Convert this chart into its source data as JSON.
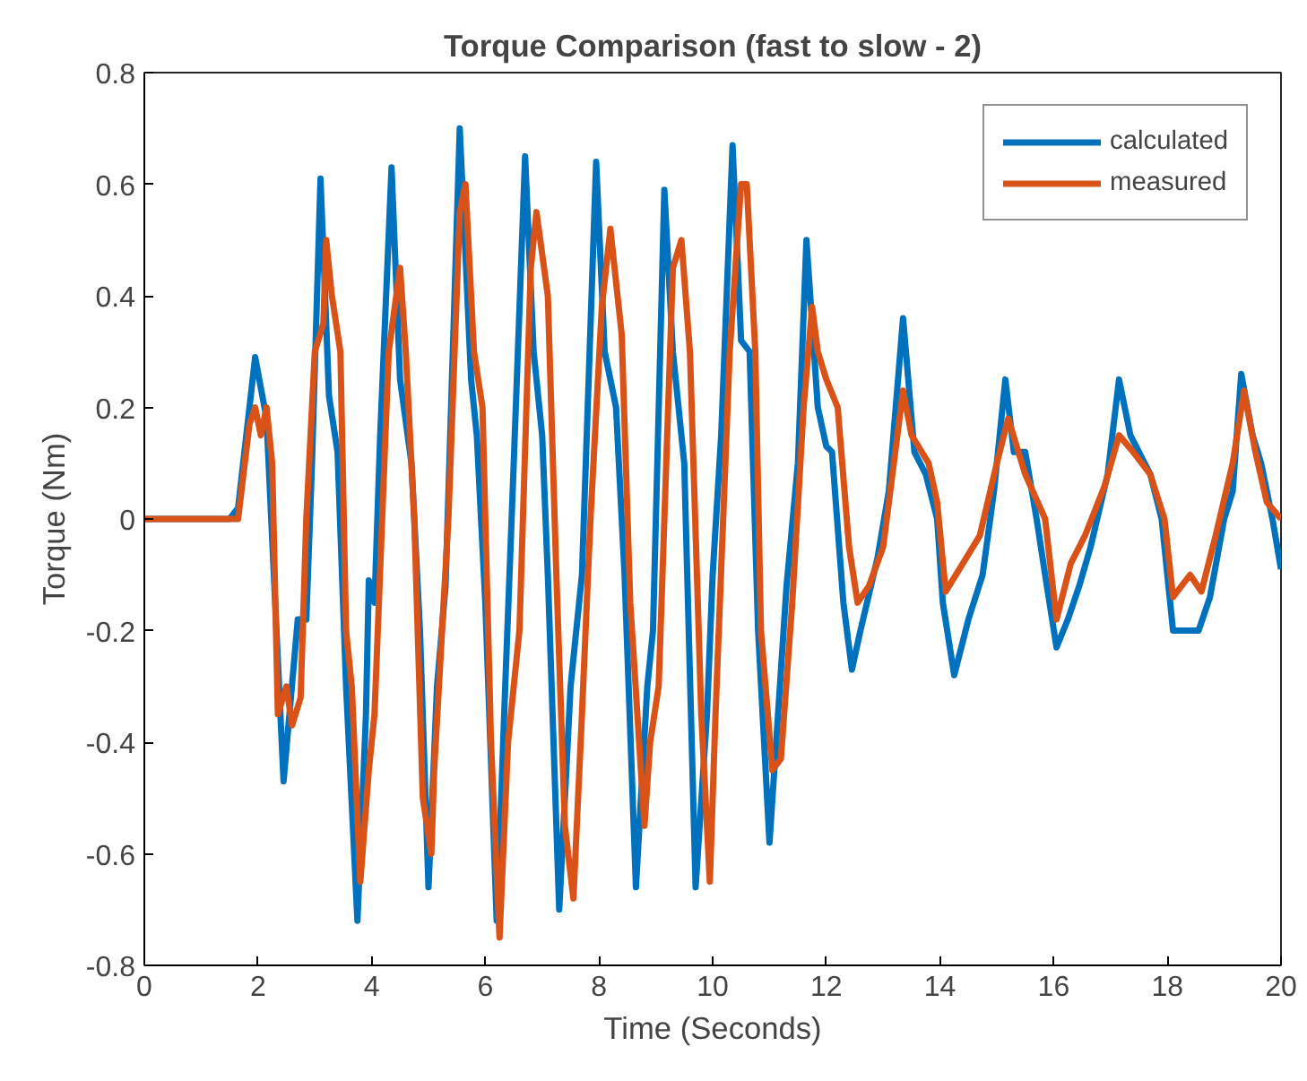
{
  "chart_data": {
    "type": "line",
    "title": "Torque Comparison (fast to slow - 2)",
    "xlabel": "Time (Seconds)",
    "ylabel": "Torque (Nm)",
    "xlim": [
      0,
      20
    ],
    "ylim": [
      -0.8,
      0.8
    ],
    "xticks": [
      0,
      2,
      4,
      6,
      8,
      10,
      12,
      14,
      16,
      18,
      20
    ],
    "yticks": [
      -0.8,
      -0.6,
      -0.4,
      -0.2,
      0,
      0.2,
      0.4,
      0.6,
      0.8
    ],
    "grid": false,
    "legend": "top right",
    "line_style": "solid",
    "marker": "none",
    "series": [
      {
        "name": "calculated",
        "color": "#0072bd",
        "x": [
          0,
          1.5,
          1.65,
          1.95,
          2.15,
          2.45,
          2.7,
          2.85,
          2.95,
          3.1,
          3.25,
          3.4,
          3.55,
          3.75,
          3.9,
          3.95,
          4.05,
          4.15,
          4.35,
          4.5,
          4.7,
          4.85,
          5.0,
          5.15,
          5.3,
          5.55,
          5.75,
          5.85,
          6.0,
          6.2,
          6.35,
          6.5,
          6.7,
          6.85,
          7.0,
          7.1,
          7.3,
          7.5,
          7.7,
          7.95,
          8.1,
          8.3,
          8.45,
          8.65,
          8.85,
          8.95,
          9.15,
          9.3,
          9.5,
          9.7,
          9.9,
          10.0,
          10.15,
          10.35,
          10.5,
          10.65,
          10.8,
          11.0,
          11.15,
          11.3,
          11.5,
          11.65,
          11.85,
          12.0,
          12.1,
          12.3,
          12.45,
          12.6,
          12.9,
          13.1,
          13.35,
          13.55,
          13.75,
          13.95,
          14.05,
          14.25,
          14.5,
          14.75,
          14.95,
          15.15,
          15.3,
          15.5,
          15.7,
          15.85,
          16.05,
          16.25,
          16.45,
          16.65,
          16.95,
          17.15,
          17.35,
          17.7,
          17.9,
          18.1,
          18.35,
          18.55,
          18.75,
          19.0,
          19.15,
          19.3,
          19.5,
          19.65,
          19.85,
          20
        ],
        "values": [
          0,
          0,
          0.02,
          0.29,
          0.18,
          -0.47,
          -0.18,
          -0.18,
          0.1,
          0.61,
          0.22,
          0.12,
          -0.3,
          -0.72,
          -0.35,
          -0.11,
          -0.15,
          0.15,
          0.63,
          0.25,
          0.1,
          -0.2,
          -0.66,
          -0.3,
          -0.12,
          0.7,
          0.25,
          0.15,
          -0.15,
          -0.72,
          -0.3,
          0.1,
          0.65,
          0.3,
          0.15,
          -0.1,
          -0.7,
          -0.3,
          -0.1,
          0.64,
          0.3,
          0.2,
          -0.1,
          -0.66,
          -0.3,
          -0.2,
          0.59,
          0.3,
          0.1,
          -0.66,
          -0.35,
          -0.1,
          0.15,
          0.67,
          0.32,
          0.3,
          -0.2,
          -0.58,
          -0.35,
          -0.12,
          0.1,
          0.5,
          0.2,
          0.13,
          0.12,
          -0.15,
          -0.27,
          -0.2,
          -0.07,
          0.05,
          0.36,
          0.12,
          0.08,
          0.0,
          -0.15,
          -0.28,
          -0.18,
          -0.1,
          0.05,
          0.25,
          0.12,
          0.12,
          0.0,
          -0.1,
          -0.23,
          -0.18,
          -0.12,
          -0.05,
          0.08,
          0.25,
          0.15,
          0.08,
          0.0,
          -0.2,
          -0.2,
          -0.2,
          -0.14,
          0.0,
          0.05,
          0.26,
          0.15,
          0.1,
          0.0,
          -0.09
        ]
      },
      {
        "name": "measured",
        "color": "#d95319",
        "x": [
          0,
          1.65,
          1.85,
          1.95,
          2.05,
          2.15,
          2.25,
          2.35,
          2.5,
          2.6,
          2.75,
          2.85,
          3.0,
          3.15,
          3.2,
          3.3,
          3.45,
          3.55,
          3.65,
          3.8,
          3.95,
          4.05,
          4.3,
          4.5,
          4.6,
          4.75,
          4.9,
          5.05,
          5.1,
          5.35,
          5.55,
          5.65,
          5.8,
          5.95,
          6.1,
          6.25,
          6.4,
          6.6,
          6.8,
          6.9,
          7.1,
          7.25,
          7.4,
          7.55,
          7.7,
          7.85,
          8.05,
          8.2,
          8.4,
          8.55,
          8.8,
          8.9,
          9.05,
          9.3,
          9.45,
          9.6,
          9.8,
          9.95,
          10.05,
          10.3,
          10.5,
          10.6,
          10.75,
          10.85,
          11.05,
          11.2,
          11.4,
          11.6,
          11.75,
          11.85,
          12.0,
          12.2,
          12.4,
          12.55,
          12.75,
          13.0,
          13.35,
          13.5,
          13.8,
          13.95,
          14.1,
          14.4,
          14.7,
          15.0,
          15.2,
          15.5,
          15.85,
          16.05,
          16.3,
          16.55,
          16.9,
          17.15,
          17.4,
          17.7,
          17.95,
          18.1,
          18.4,
          18.6,
          18.85,
          19.15,
          19.35,
          19.55,
          19.75,
          20
        ],
        "values": [
          0,
          0,
          0.17,
          0.2,
          0.15,
          0.2,
          0.1,
          -0.35,
          -0.3,
          -0.37,
          -0.32,
          0.0,
          0.3,
          0.35,
          0.5,
          0.4,
          0.3,
          -0.2,
          -0.3,
          -0.65,
          -0.45,
          -0.35,
          0.3,
          0.45,
          0.3,
          0.0,
          -0.5,
          -0.6,
          -0.45,
          0.0,
          0.55,
          0.6,
          0.3,
          0.2,
          -0.4,
          -0.75,
          -0.4,
          -0.2,
          0.45,
          0.55,
          0.4,
          -0.1,
          -0.55,
          -0.68,
          -0.35,
          0.0,
          0.38,
          0.52,
          0.33,
          -0.15,
          -0.55,
          -0.4,
          -0.3,
          0.45,
          0.5,
          0.3,
          -0.35,
          -0.65,
          -0.35,
          0.3,
          0.6,
          0.6,
          0.3,
          -0.2,
          -0.45,
          -0.43,
          -0.15,
          0.2,
          0.38,
          0.3,
          0.25,
          0.2,
          -0.05,
          -0.15,
          -0.12,
          -0.05,
          0.23,
          0.15,
          0.1,
          0.03,
          -0.13,
          -0.08,
          -0.03,
          0.1,
          0.18,
          0.08,
          0.0,
          -0.18,
          -0.08,
          -0.03,
          0.06,
          0.15,
          0.12,
          0.08,
          0.0,
          -0.14,
          -0.1,
          -0.13,
          -0.03,
          0.1,
          0.23,
          0.12,
          0.03,
          0.0
        ]
      }
    ]
  }
}
